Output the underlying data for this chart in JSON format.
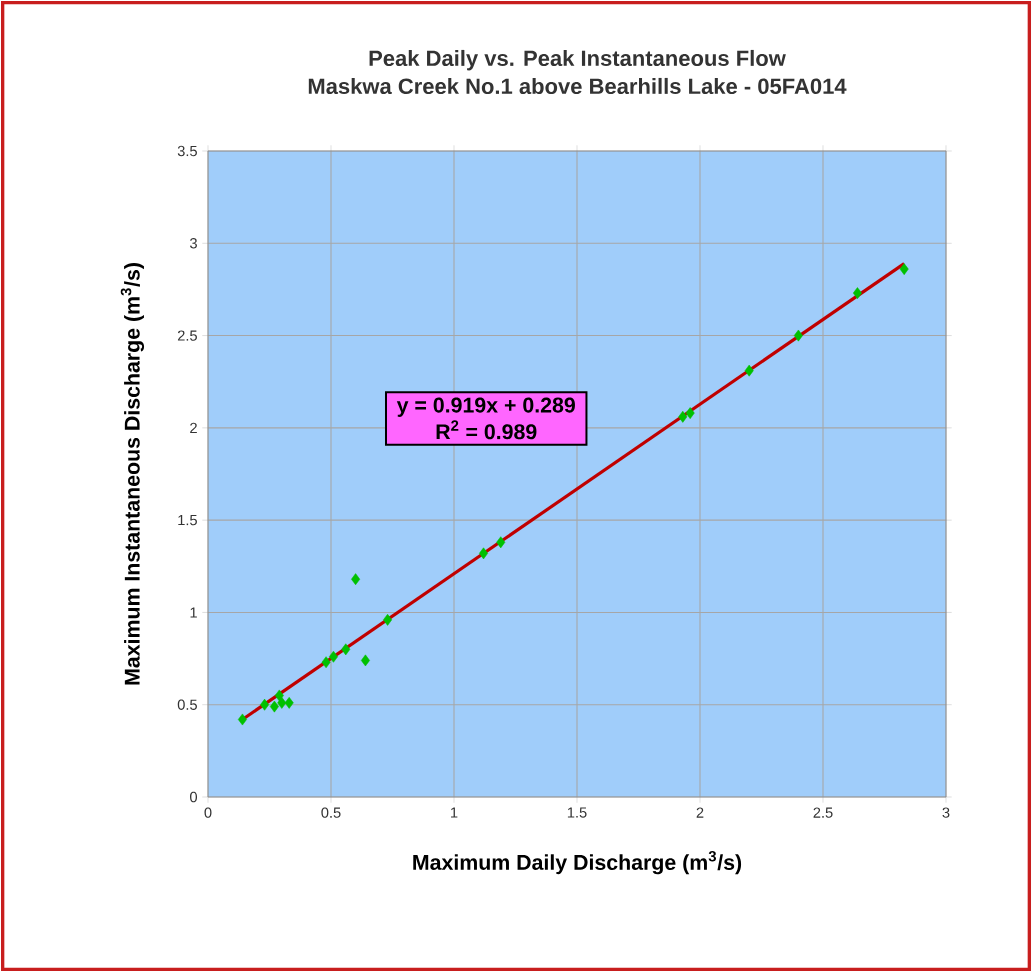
{
  "chart_data": {
    "type": "scatter",
    "title": "Peak Daily vs. Peak Instantaneous Flow",
    "subtitle": "Maskwa Creek No.1 above Bearhills Lake - 05FA014",
    "xlabel": "Maximum Daily Discharge (m$^{3}$/s)",
    "ylabel": "Maximum Instantaneous Discharge (m$^{3}$/s)",
    "annotations": [
      "y = 0.919x + 0.289",
      "R$^{2}$ = 0.989"
    ],
    "series": [
      {
        "color": "#00c000",
        "marker": "diamond",
        "x": [
          0.14,
          0.23,
          0.27,
          0.29,
          0.3,
          0.33,
          0.48,
          0.51,
          0.56,
          0.6,
          0.64,
          0.73,
          1.12,
          1.19,
          1.93,
          1.96,
          2.2,
          2.4,
          2.64,
          2.83
        ],
        "values": [
          0.42,
          0.5,
          0.49,
          0.55,
          0.51,
          0.51,
          0.73,
          0.76,
          0.8,
          1.18,
          0.74,
          0.96,
          1.32,
          1.38,
          2.06,
          2.08,
          2.31,
          2.5,
          2.73,
          2.86
        ]
      },
      {
        "type": "line",
        "color": "#c00000",
        "marker": "none",
        "x": [
          0.14,
          2.83
        ],
        "values": [
          0.42,
          2.89
        ]
      }
    ],
    "xlim": [
      0,
      3
    ],
    "ylim": [
      0,
      3.5
    ],
    "xticks": [
      0,
      0.5,
      1,
      1.5,
      2,
      2.5,
      3
    ],
    "yticks": [
      0,
      0.5,
      1,
      1.5,
      2,
      2.5,
      3,
      3.5
    ],
    "grid": true
  }
}
